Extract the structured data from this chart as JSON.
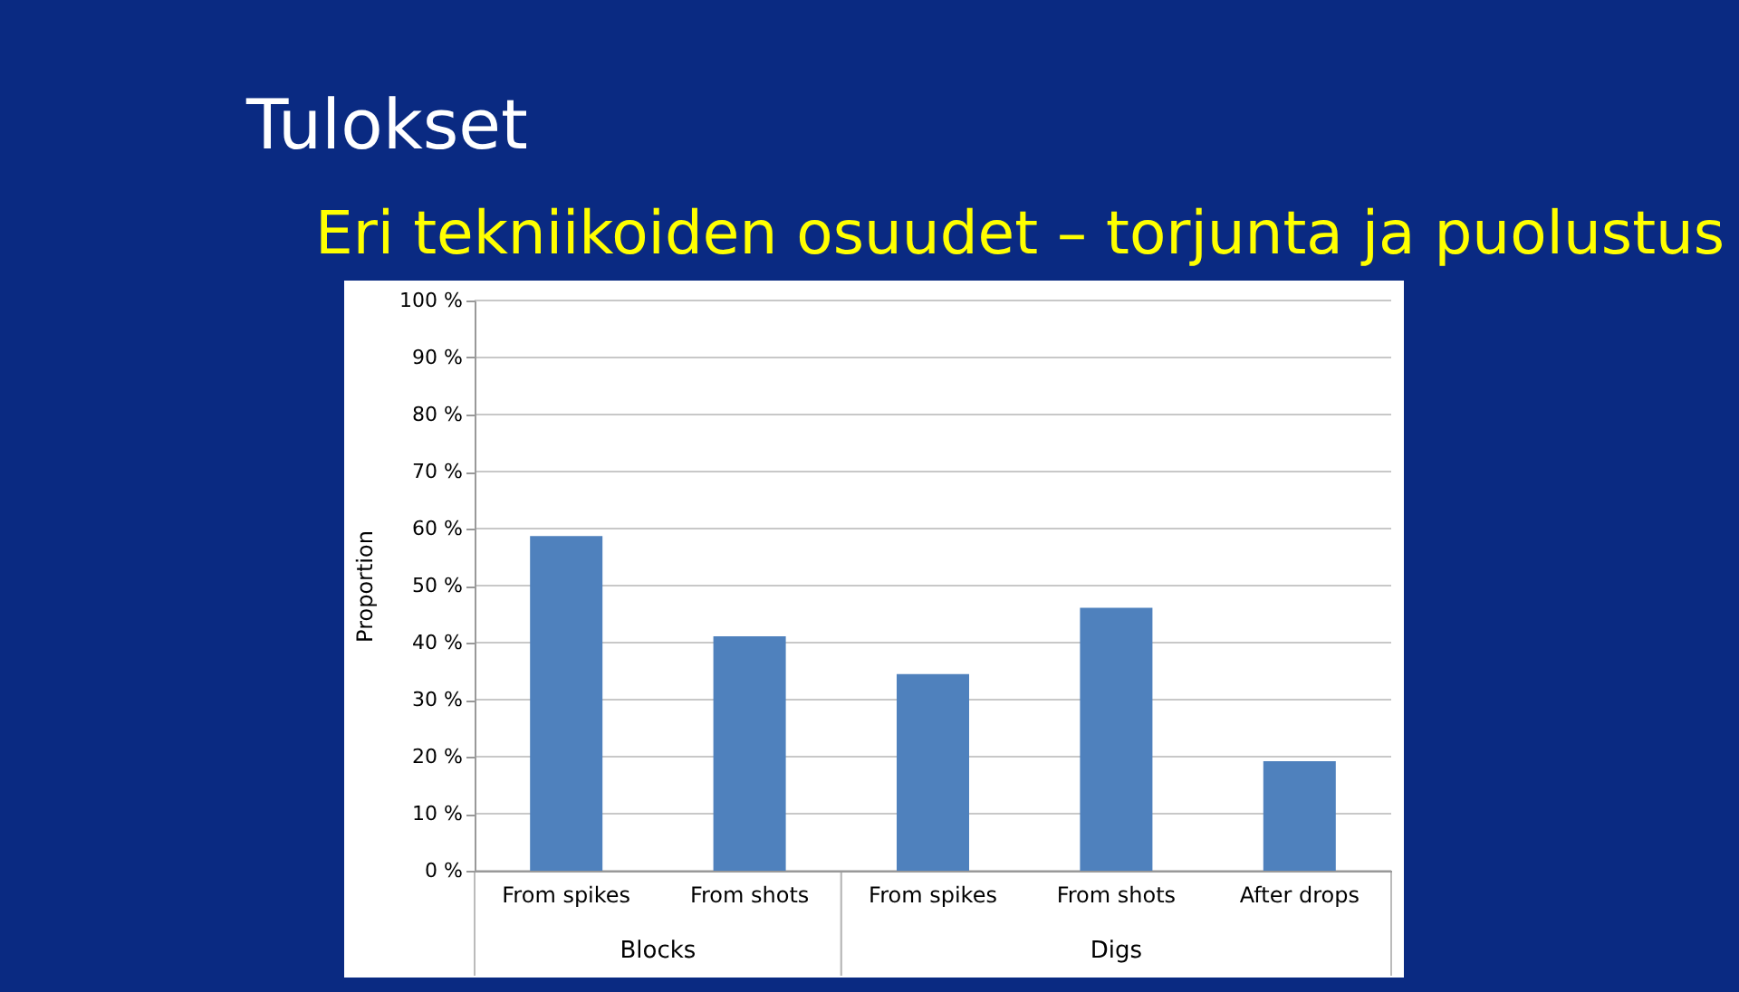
{
  "chart_data": {
    "type": "bar",
    "title": "Tulokset",
    "subtitle": "Eri tekniikoiden osuudet – torjunta ja puolustus",
    "ylabel": "Proportion",
    "categories": [
      "From spikes",
      "From shots",
      "From spikes",
      "From shots",
      "After drops"
    ],
    "values": [
      58.7,
      41.1,
      34.5,
      46.1,
      19.2
    ],
    "color": "#4f81bd",
    "ylim": [
      0,
      100
    ],
    "yticks": [
      {
        "value": 0,
        "label": "0 %"
      },
      {
        "value": 10,
        "label": "10 %"
      },
      {
        "value": 20,
        "label": "20 %"
      },
      {
        "value": 30,
        "label": "30 %"
      },
      {
        "value": 40,
        "label": "40 %"
      },
      {
        "value": 50,
        "label": "50 %"
      },
      {
        "value": 60,
        "label": "60 %"
      },
      {
        "value": 70,
        "label": "70 %"
      },
      {
        "value": 80,
        "label": "80 %"
      },
      {
        "value": 90,
        "label": "90 %"
      },
      {
        "value": 100,
        "label": "100 %"
      }
    ],
    "grid": "y",
    "annotations": [
      "Blocks",
      "Digs"
    ]
  }
}
